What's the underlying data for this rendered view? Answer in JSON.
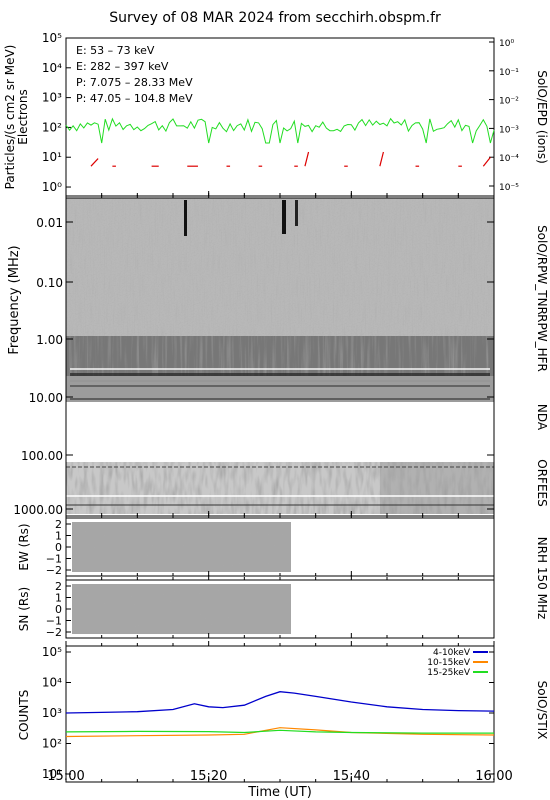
{
  "title": "Survey of 08 MAR 2024 from secchirh.obspm.fr",
  "colors": {
    "electrons_low": "#22dd22",
    "electrons_high": "#dd0000",
    "protons_low": "#000000",
    "protons_high": "#0000cc",
    "stix_4_10": "#0000cc",
    "stix_10_15": "#ff8800",
    "stix_15_25": "#22dd22"
  },
  "chart_data": [
    {
      "type": "line",
      "panel": "SolO/EPD (ions)",
      "ylabel": "Particles/(s cm2 sr MeV)",
      "ylabel2": "Electrons",
      "yscale": "log",
      "ylim": [
        0.5,
        100000
      ],
      "yticks": [
        "10⁰",
        "10¹",
        "10²",
        "10³",
        "10⁴",
        "10⁵"
      ],
      "y2ticks": [
        "10⁻⁵",
        "10⁻⁴",
        "10⁻³",
        "10⁻²",
        "10⁻¹",
        "10⁰"
      ],
      "legend": [
        {
          "label": "E: 53 – 73 keV",
          "color": "#22dd22"
        },
        {
          "label": "E: 282 – 397 keV",
          "color": "#dd0000"
        },
        {
          "label": "P: 7.075 – 28.33 MeV",
          "color": "#000000"
        },
        {
          "label": "P: 47.05 – 104.8 MeV",
          "color": "#0000cc"
        }
      ],
      "series": [
        {
          "name": "E: 53 – 73 keV",
          "approx_level": 120
        },
        {
          "name": "E: 282 – 397 keV",
          "approx_level": 5
        }
      ]
    },
    {
      "type": "heatmap",
      "panel": "SolO/RPW_TNR",
      "ylabel": "Frequency (MHz)",
      "ytick_labels": [
        "0.01",
        "0.10",
        "1.00"
      ]
    },
    {
      "type": "heatmap",
      "panel": "RPW_HFR",
      "ytick_labels": [
        "10.00"
      ]
    },
    {
      "type": "heatmap",
      "panel": "NDA"
    },
    {
      "type": "heatmap",
      "panel": "ORFEES",
      "ytick_labels": [
        "100.00",
        "1000.00"
      ]
    },
    {
      "type": "heatmap",
      "panel": "NRH 150 MHz",
      "subpanels": [
        {
          "ylabel": "EW (Rs)",
          "yticks": [
            "2",
            "1",
            "0",
            "−1",
            "−2"
          ]
        },
        {
          "ylabel": "SN (Rs)",
          "yticks": [
            "2",
            "1",
            "0",
            "−1",
            "−2"
          ]
        }
      ],
      "data_end": "15:31"
    },
    {
      "type": "line",
      "panel": "SoIO/STIX",
      "ylabel": "COUNTS",
      "yscale": "log",
      "ylim": [
        10,
        100000
      ],
      "yticks": [
        "10¹",
        "10²",
        "10³",
        "10⁴",
        "10⁵"
      ],
      "legend": [
        {
          "label": "4-10keV",
          "color": "#0000cc"
        },
        {
          "label": "10-15keV",
          "color": "#ff8800"
        },
        {
          "label": "15-25keV",
          "color": "#22dd22"
        }
      ],
      "series": [
        {
          "name": "4-10keV",
          "t": [
            0,
            5,
            10,
            15,
            18,
            20,
            22,
            25,
            28,
            30,
            32,
            35,
            40,
            45,
            50,
            55,
            60
          ],
          "values": [
            1000,
            1050,
            1100,
            1300,
            2000,
            1600,
            1500,
            1800,
            3500,
            5000,
            4500,
            3500,
            2300,
            1600,
            1300,
            1200,
            1150
          ]
        },
        {
          "name": "10-15keV",
          "t": [
            0,
            10,
            20,
            25,
            30,
            35,
            40,
            50,
            60
          ],
          "values": [
            170,
            180,
            190,
            200,
            330,
            280,
            230,
            200,
            190
          ]
        },
        {
          "name": "15-25keV",
          "t": [
            0,
            10,
            20,
            25,
            30,
            35,
            40,
            50,
            60
          ],
          "values": [
            240,
            250,
            245,
            230,
            270,
            240,
            230,
            220,
            220
          ]
        }
      ]
    }
  ],
  "time_axis": {
    "label": "Time (UT)",
    "ticks": [
      "15:00",
      "15:20",
      "15:40",
      "16:00"
    ],
    "range_minutes": [
      0,
      60
    ]
  }
}
